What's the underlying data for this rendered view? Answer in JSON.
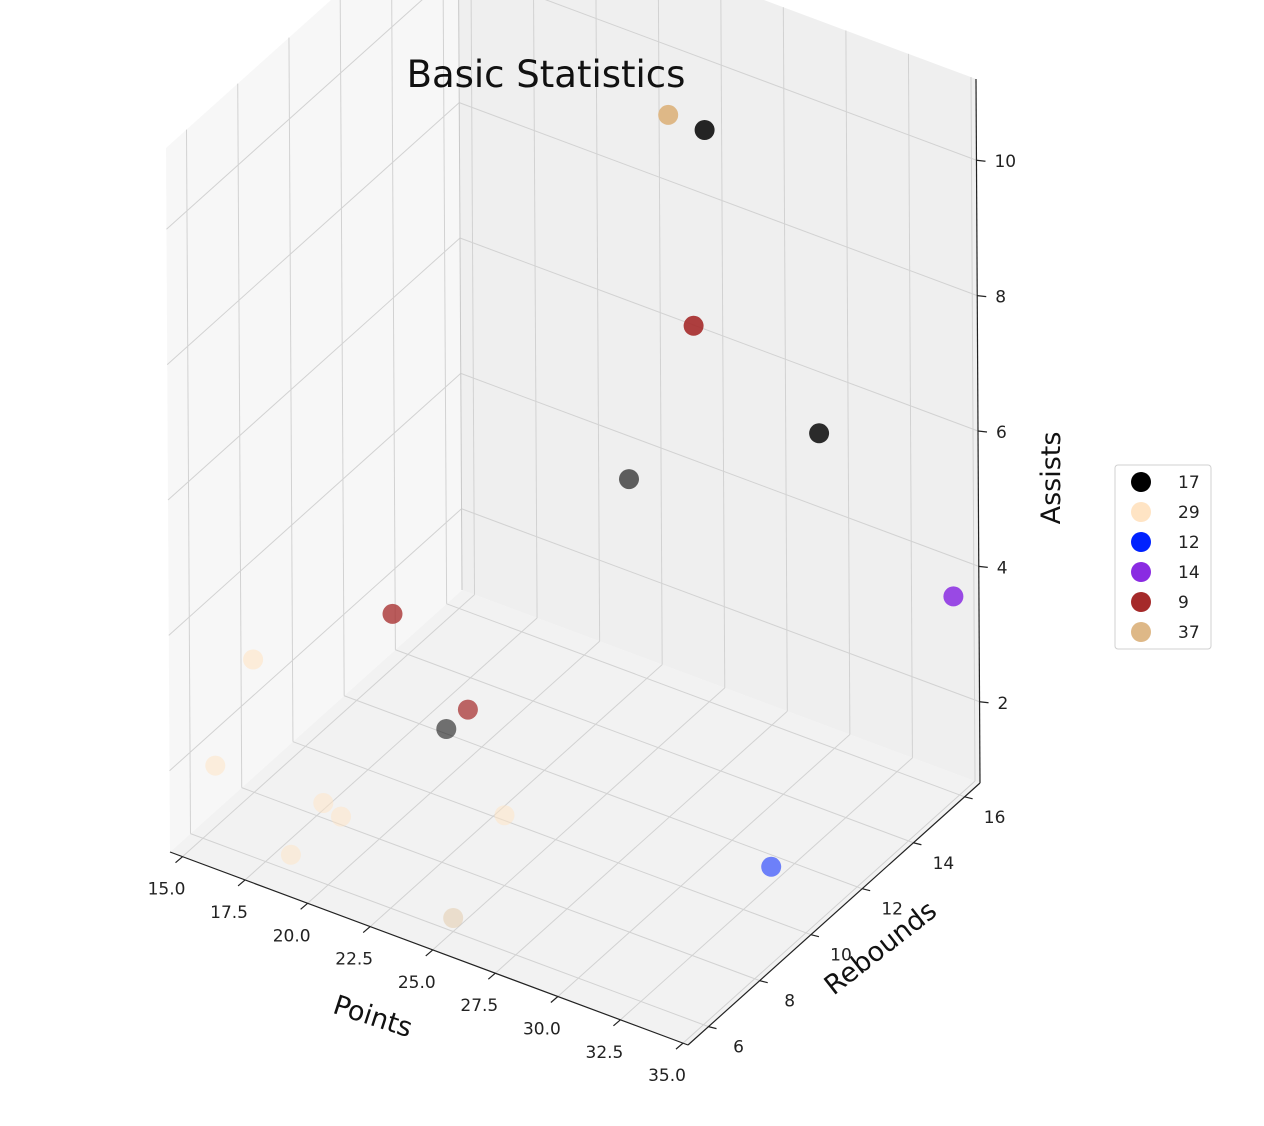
{
  "chart_data": {
    "type": "scatter3d",
    "title": "Basic Statistics",
    "xlabel": "Points",
    "ylabel": "Rebounds",
    "zlabel": "Assists",
    "xlim": [
      14.5,
      35.2
    ],
    "ylim": [
      5.2,
      16.6
    ],
    "zlim": [
      0.8,
      11.2
    ],
    "xticks": [
      "15.0",
      "17.5",
      "20.0",
      "22.5",
      "25.0",
      "27.5",
      "30.0",
      "32.5",
      "35.0"
    ],
    "yticks": [
      "6",
      "8",
      "10",
      "12",
      "14",
      "16"
    ],
    "zticks": [
      "2",
      "4",
      "6",
      "8",
      "10"
    ],
    "legend_position": "center-right",
    "series": [
      {
        "name": "17",
        "color": "#000000",
        "points": [
          [
            27.0,
            14.0,
            10.2
          ],
          [
            27.5,
            10.5,
            6.3
          ],
          [
            22.5,
            8.2,
            2.7
          ],
          [
            31.0,
            14.5,
            6.1
          ]
        ]
      },
      {
        "name": "29",
        "color": "#ffe4c4",
        "points": [
          [
            15.5,
            7.5,
            3.0
          ],
          [
            15.2,
            6.3,
            1.8
          ],
          [
            18.0,
            6.5,
            0.8
          ],
          [
            19.5,
            7.0,
            1.4
          ],
          [
            19.0,
            6.8,
            1.6
          ],
          [
            24.5,
            8.5,
            1.6
          ]
        ]
      },
      {
        "name": "12",
        "color": "#0022ff",
        "points": [
          [
            32.8,
            10.8,
            1.2
          ]
        ]
      },
      {
        "name": "14",
        "color": "#8a2be2",
        "points": [
          [
            35.0,
            15.8,
            3.8
          ]
        ]
      },
      {
        "name": "9",
        "color": "#a52a2a",
        "points": [
          [
            18.0,
            10.5,
            3.0
          ],
          [
            26.0,
            14.5,
            7.0
          ],
          [
            21.0,
            10.5,
            2.0
          ]
        ]
      },
      {
        "name": "37",
        "color": "#deb887",
        "points": [
          [
            25.0,
            6.0,
            1.0
          ],
          [
            24.0,
            15.5,
            9.5
          ]
        ]
      }
    ]
  }
}
